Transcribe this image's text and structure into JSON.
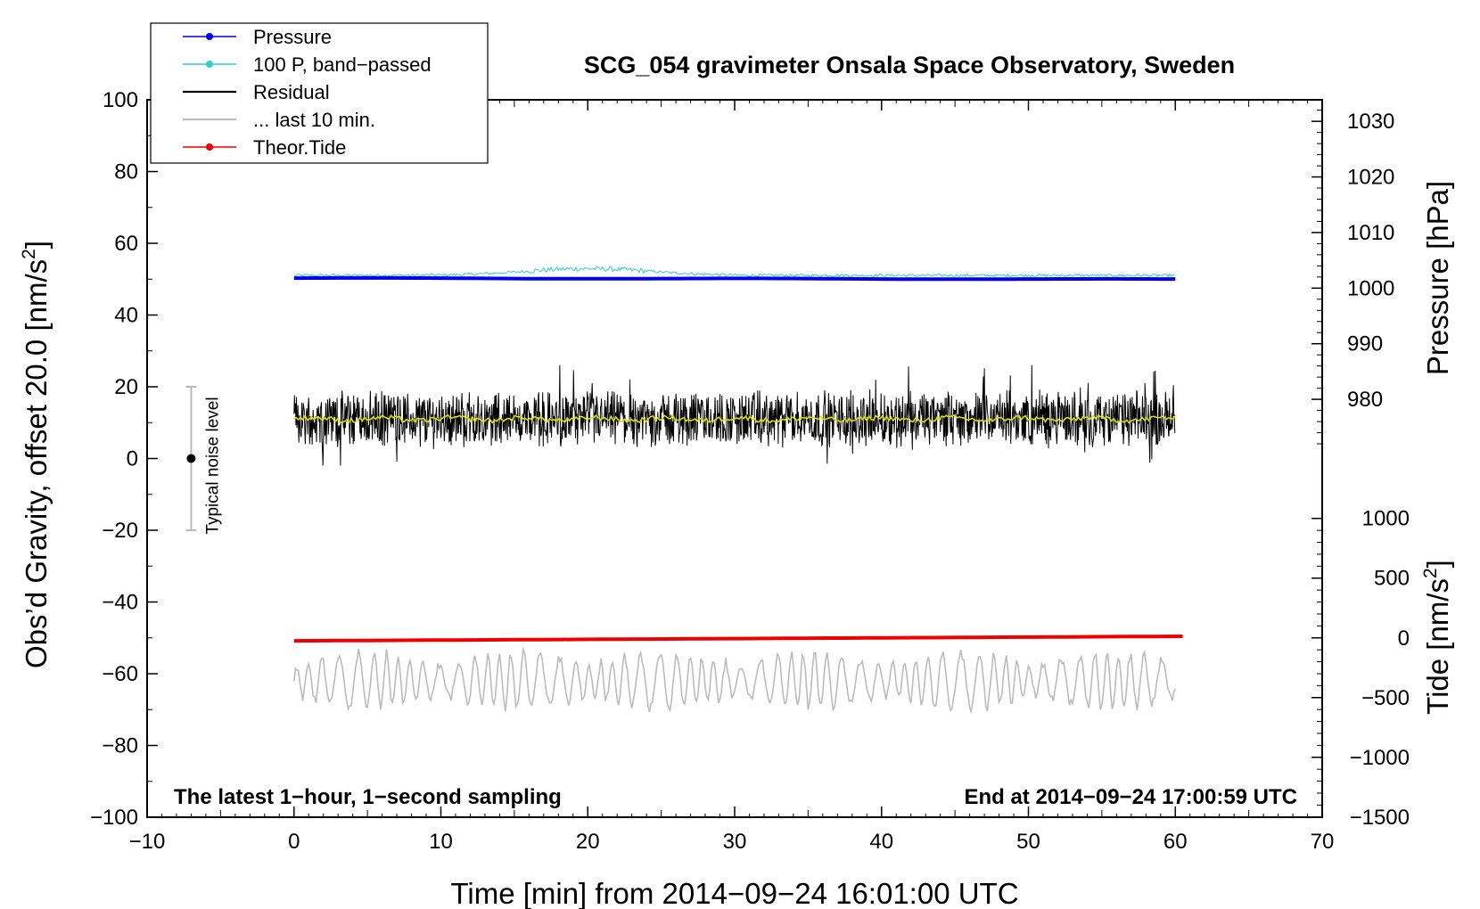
{
  "chart_data": {
    "type": "line",
    "title": "SCG_054 gravimeter Onsala Space Observatory, Sweden",
    "xlabel": "Time [min] from 2014−09−24 16:01:00 UTC",
    "ylabel_left": "Obs’d Gravity, offset 20.0 [nm/s",
    "ylabel_left_sup": "2",
    "ylabel_left_close": "]",
    "ylabel_pressure": "Pressure [hPa]",
    "ylabel_tide": "Tide [nm/s",
    "ylabel_tide_sup": "2",
    "ylabel_tide_close": "]",
    "xlim": [
      -10,
      70
    ],
    "ylim_left": [
      -100,
      100
    ],
    "x_ticks": [
      -10,
      0,
      10,
      20,
      30,
      40,
      50,
      60,
      70
    ],
    "x_tick_labels": [
      "−10",
      "0",
      "10",
      "20",
      "30",
      "40",
      "50",
      "60",
      "70"
    ],
    "y_ticks_left": [
      -100,
      -80,
      -60,
      -40,
      -20,
      0,
      20,
      40,
      60,
      80,
      100
    ],
    "y_tick_labels_left": [
      "−100",
      "−80",
      "−60",
      "−40",
      "−20",
      "0",
      "20",
      "40",
      "60",
      "80",
      "100"
    ],
    "pressure_axis": {
      "ticks": [
        980,
        990,
        1000,
        1010,
        1020,
        1030
      ],
      "tick_labels": [
        "980",
        "990",
        "1000",
        "1010",
        "1020",
        "1030"
      ],
      "ref_value": 1000,
      "ref_left_y": 47.5,
      "scale_left_per_hpa": 1.55
    },
    "tide_axis": {
      "ticks": [
        -1500,
        -1000,
        -500,
        0,
        500,
        1000
      ],
      "tick_labels": [
        "−1500",
        "−1000",
        "−500",
        "0",
        "500",
        "1000"
      ],
      "ref_value": 0,
      "ref_left_y": -50,
      "scale_left_per_unit": 0.0333
    },
    "legend": {
      "position": "top-left",
      "entries": [
        {
          "label": "Pressure",
          "color": "#0000ee",
          "marker": true
        },
        {
          "label": "100 P, band−passed",
          "color": "#33cccc",
          "marker": true
        },
        {
          "label": "Residual",
          "color": "#000000",
          "marker": false
        },
        {
          "label": "... last 10 min.",
          "color": "#bbbbbb",
          "marker": false
        },
        {
          "label": "Theor.Tide",
          "color": "#ee0000",
          "marker": true
        }
      ]
    },
    "series": [
      {
        "name": "Pressure",
        "color": "#0000ee",
        "x_range": [
          0,
          60
        ],
        "level_hpa": 1001.8,
        "end_level_hpa": 1001.6
      },
      {
        "name": "100 P, band−passed",
        "color": "#33cccc",
        "x_range": [
          0,
          60
        ],
        "level_hpa": 1002.3,
        "bump_peak_hpa": 1003.5,
        "bump_at_min": 20
      },
      {
        "name": "Residual",
        "color": "#000000",
        "x_range": [
          0,
          60
        ],
        "center": 11,
        "spread": 10,
        "min": -2,
        "max": 26
      },
      {
        "name": "Residual smoothed",
        "color": "#dddd00",
        "x_range": [
          0,
          60
        ],
        "center": 11
      },
      {
        "name": "... last 10 min.",
        "color": "#bbbbbb",
        "x_range": [
          0,
          60
        ],
        "center": -62,
        "spread": 6
      },
      {
        "name": "Theor.Tide",
        "color": "#ee0000",
        "x_range": [
          0,
          60.5
        ],
        "start_nms2": -25,
        "end_nms2": 13
      }
    ],
    "annotations": {
      "noise_label": "Typical noise level",
      "noise_bar": {
        "x": -7,
        "y_low": -20,
        "y_high": 20,
        "center": 0
      },
      "note_left": "The latest 1−hour, 1−second sampling",
      "note_right": "End at 2014−09−24 17:00:59 UTC"
    }
  }
}
